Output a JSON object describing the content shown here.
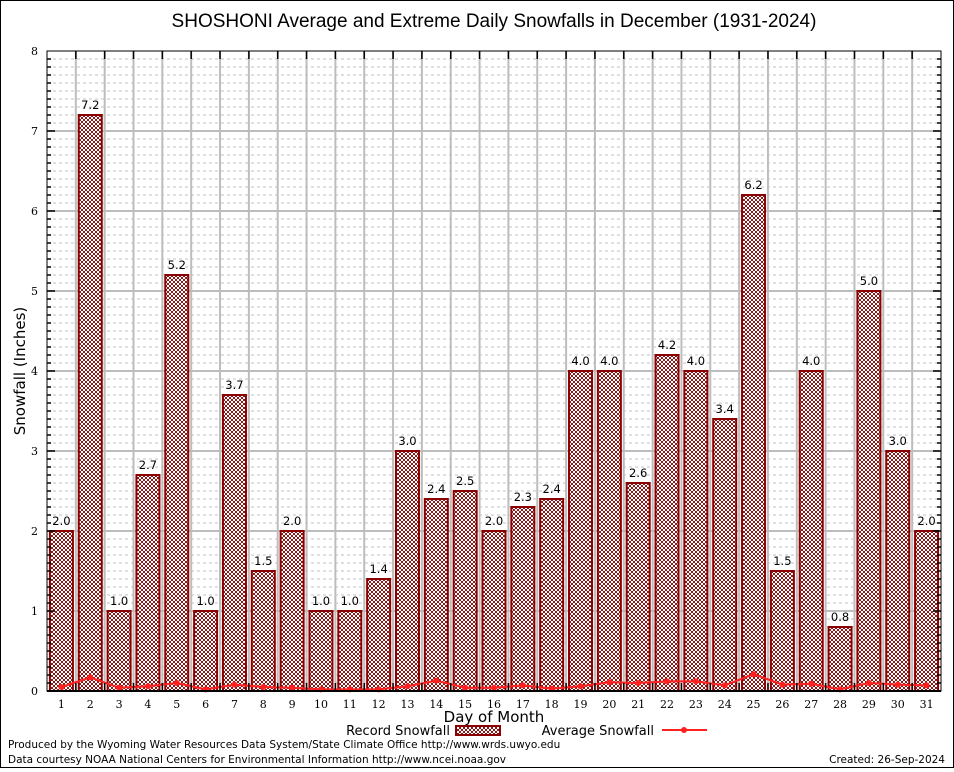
{
  "chart_data": {
    "type": "bar",
    "title": "SHOSHONI Average and Extreme Daily Snowfalls in December (1931-2024)",
    "xlabel": "Day of Month",
    "ylabel": "Snowfall (Inches)",
    "ylim": [
      0,
      8
    ],
    "yticks": [
      "0",
      "1",
      "2",
      "3",
      "4",
      "5",
      "6",
      "7",
      "8"
    ],
    "grid": true,
    "legend_placement": "bottom-center",
    "categories": [
      "1",
      "2",
      "3",
      "4",
      "5",
      "6",
      "7",
      "8",
      "9",
      "10",
      "11",
      "12",
      "13",
      "14",
      "15",
      "16",
      "17",
      "18",
      "19",
      "20",
      "21",
      "22",
      "23",
      "24",
      "25",
      "26",
      "27",
      "28",
      "29",
      "30",
      "31"
    ],
    "series": [
      {
        "name": "Record Snowfall",
        "type": "bar",
        "color": "#8b0000",
        "values": [
          2.0,
          7.2,
          1.0,
          2.7,
          5.2,
          1.0,
          3.7,
          1.5,
          2.0,
          1.0,
          1.0,
          1.4,
          3.0,
          2.4,
          2.5,
          2.0,
          2.3,
          2.4,
          4.0,
          4.0,
          2.6,
          4.2,
          4.0,
          3.4,
          6.2,
          1.5,
          4.0,
          0.8,
          5.0,
          3.0,
          2.0
        ],
        "labels": [
          "2.0",
          "7.2",
          "1.0",
          "2.7",
          "5.2",
          "1.0",
          "3.7",
          "1.5",
          "2.0",
          "1.0",
          "1.0",
          "1.4",
          "3.0",
          "2.4",
          "2.5",
          "2.0",
          "2.3",
          "2.4",
          "4.0",
          "4.0",
          "2.6",
          "4.2",
          "4.0",
          "3.4",
          "6.2",
          "1.5",
          "4.0",
          "0.8",
          "5.0",
          "3.0",
          "2.0"
        ]
      },
      {
        "name": "Average Snowfall",
        "type": "line",
        "color": "#ff2020",
        "values": [
          0.05,
          0.17,
          0.04,
          0.06,
          0.1,
          0.02,
          0.08,
          0.05,
          0.04,
          0.02,
          0.02,
          0.02,
          0.06,
          0.13,
          0.04,
          0.04,
          0.07,
          0.03,
          0.06,
          0.11,
          0.1,
          0.12,
          0.12,
          0.07,
          0.21,
          0.08,
          0.09,
          0.02,
          0.1,
          0.08,
          0.07
        ]
      }
    ]
  },
  "footer": {
    "line1": "Produced by the Wyoming Water Resources Data System/State Climate Office http://www.wrds.uwyo.edu",
    "line2": "Data courtesy NOAA National Centers for Environmental Information http://www.ncei.noaa.gov",
    "created": "Created: 26-Sep-2024"
  }
}
